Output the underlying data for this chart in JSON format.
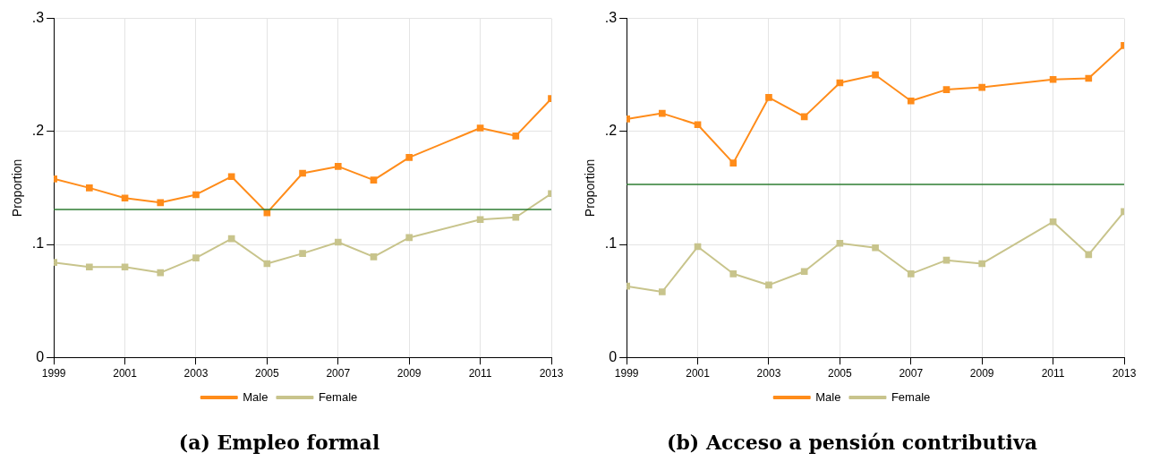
{
  "chart_data": [
    {
      "type": "line",
      "title": "(a) Empleo formal",
      "ylabel": "Proportion",
      "x": [
        1999,
        2000,
        2001,
        2002,
        2003,
        2004,
        2005,
        2006,
        2007,
        2008,
        2009,
        2011,
        2012,
        2013
      ],
      "xlim": [
        1999,
        2013
      ],
      "xticks": [
        1999,
        2001,
        2003,
        2005,
        2007,
        2009,
        2011,
        2013
      ],
      "ylim": [
        0,
        0.3
      ],
      "yticks": [
        {
          "value": 0,
          "label": "0"
        },
        {
          "value": 0.1,
          "label": ".1"
        },
        {
          "value": 0.2,
          "label": ".2"
        },
        {
          "value": 0.3,
          "label": ".3"
        }
      ],
      "grid": true,
      "legend": "bottom",
      "marker": "square",
      "line_style": "solid",
      "series": [
        {
          "name": "Male",
          "color": "#ff8c1a",
          "values": [
            0.158,
            0.15,
            0.141,
            0.137,
            0.144,
            0.16,
            0.128,
            0.163,
            0.169,
            0.157,
            0.177,
            0.203,
            0.196,
            0.229
          ]
        },
        {
          "name": "Female",
          "color": "#c8c48c",
          "values": [
            0.084,
            0.08,
            0.08,
            0.075,
            0.088,
            0.105,
            0.083,
            0.092,
            0.102,
            0.089,
            0.106,
            0.122,
            0.124,
            0.145
          ]
        }
      ],
      "ref_lines": [
        {
          "axis": "y",
          "value": 0.131,
          "color": "#2e7d32"
        }
      ]
    },
    {
      "type": "line",
      "title": "(b) Acceso a pensión contributiva",
      "ylabel": "Proportion",
      "x": [
        1999,
        2000,
        2001,
        2002,
        2003,
        2004,
        2005,
        2006,
        2007,
        2008,
        2009,
        2011,
        2012,
        2013
      ],
      "xlim": [
        1999,
        2013
      ],
      "xticks": [
        1999,
        2001,
        2003,
        2005,
        2007,
        2009,
        2011,
        2013
      ],
      "ylim": [
        0,
        0.3
      ],
      "yticks": [
        {
          "value": 0,
          "label": "0"
        },
        {
          "value": 0.1,
          "label": ".1"
        },
        {
          "value": 0.2,
          "label": ".2"
        },
        {
          "value": 0.3,
          "label": ".3"
        }
      ],
      "grid": true,
      "legend": "bottom",
      "marker": "square",
      "line_style": "solid",
      "series": [
        {
          "name": "Male",
          "color": "#ff8c1a",
          "values": [
            0.211,
            0.216,
            0.206,
            0.172,
            0.23,
            0.213,
            0.243,
            0.25,
            0.227,
            0.237,
            0.239,
            0.246,
            0.247,
            0.276
          ]
        },
        {
          "name": "Female",
          "color": "#c8c48c",
          "values": [
            0.063,
            0.058,
            0.098,
            0.074,
            0.064,
            0.076,
            0.101,
            0.097,
            0.074,
            0.086,
            0.083,
            0.12,
            0.091,
            0.129
          ]
        }
      ],
      "ref_lines": [
        {
          "axis": "y",
          "value": 0.153,
          "color": "#2e7d32"
        }
      ]
    }
  ]
}
